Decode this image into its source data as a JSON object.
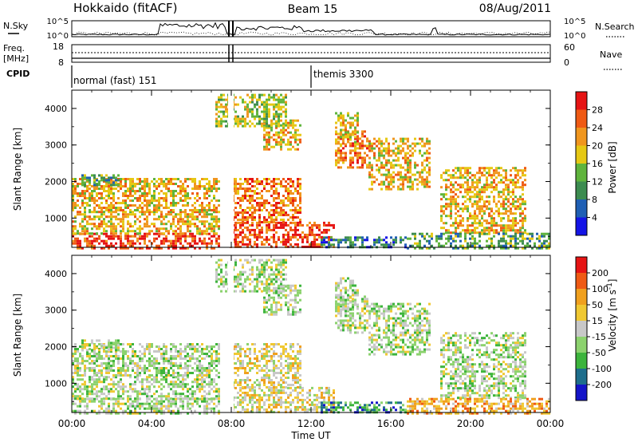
{
  "header": {
    "station": "Hokkaido (fitACF)",
    "beam": "Beam 15",
    "date": "08/Aug/2011"
  },
  "status_panels": {
    "nsky_label": "N.Sky",
    "nsearch_label": "N.Search",
    "freq_label_line1": "Freq.",
    "freq_label_line2": "[MHz]",
    "nave_label": "Nave",
    "cpid_label": "CPID",
    "nsky_ticks": [
      "10^5",
      "10^0"
    ],
    "nsearch_ticks": [
      "10^5",
      "10^0"
    ],
    "freq_ticks": [
      "18",
      "8"
    ],
    "nave_ticks": [
      "60",
      "0"
    ],
    "cpid_modes": [
      "normal (fast) 151",
      "themis 3300"
    ]
  },
  "chart_data": [
    {
      "type": "heatmap",
      "panel": "power",
      "ylabel": "Slant Range [km]",
      "yticks": [
        "1000",
        "2000",
        "3000",
        "4000"
      ],
      "ylim": [
        200,
        4500
      ],
      "xlim": [
        "00:00",
        "24:00"
      ],
      "colorbar_label": "Power [dB]",
      "colorbar_ticks": [
        "4",
        "8",
        "12",
        "16",
        "20",
        "24",
        "28"
      ],
      "colors": [
        "#1414e6",
        "#1f5fb4",
        "#3c8c50",
        "#5fb43c",
        "#e6c814",
        "#f0961e",
        "#ef5a14",
        "#e61414"
      ]
    },
    {
      "type": "heatmap",
      "panel": "velocity",
      "ylabel": "Slant Range [km]",
      "yticks": [
        "1000",
        "2000",
        "3000",
        "4000"
      ],
      "ylim": [
        200,
        4500
      ],
      "xlim": [
        "00:00",
        "24:00"
      ],
      "colorbar_label": "Velocity [m s",
      "colorbar_label_sup": "-1",
      "colorbar_label_end": "]",
      "colorbar_ticks": [
        "200",
        "100",
        "50",
        "15",
        "-15",
        "-50",
        "-100",
        "-200"
      ],
      "colors": [
        "#1414c8",
        "#1e6e8c",
        "#3cb43c",
        "#8cd26e",
        "#c8c8c8",
        "#f0c832",
        "#f0a01e",
        "#ef5a14",
        "#e61414"
      ]
    }
  ],
  "xaxis": {
    "ticks": [
      "00:00",
      "04:00",
      "08:00",
      "12:00",
      "16:00",
      "20:00",
      "00:00"
    ],
    "label": "Time UT"
  }
}
